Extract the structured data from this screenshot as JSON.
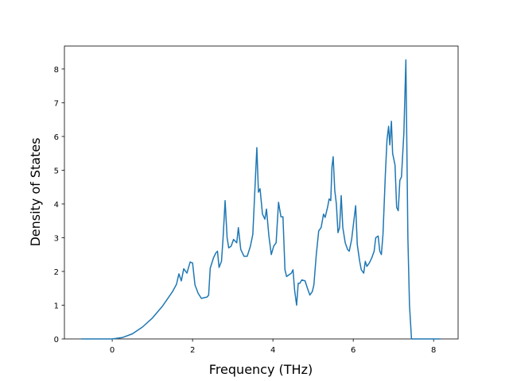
{
  "chart_data": {
    "type": "line",
    "xlabel": "Frequency (THz)",
    "ylabel": "Density of States",
    "xlim": [
      -1.19,
      8.61
    ],
    "ylim": [
      0,
      8.68
    ],
    "xticks": [
      0,
      2,
      4,
      6,
      8
    ],
    "yticks": [
      0,
      1,
      2,
      3,
      4,
      5,
      6,
      7,
      8
    ],
    "grid": false,
    "x": [
      -0.77,
      0,
      0.25,
      0.5,
      0.75,
      1.0,
      1.25,
      1.5,
      1.6,
      1.66,
      1.72,
      1.78,
      1.86,
      1.94,
      2.0,
      2.06,
      2.14,
      2.22,
      2.28,
      2.36,
      2.4,
      2.44,
      2.52,
      2.58,
      2.62,
      2.66,
      2.72,
      2.76,
      2.81,
      2.86,
      2.9,
      2.96,
      3.02,
      3.1,
      3.14,
      3.2,
      3.28,
      3.36,
      3.44,
      3.5,
      3.6,
      3.64,
      3.68,
      3.74,
      3.8,
      3.84,
      3.9,
      3.96,
      4.02,
      4.08,
      4.14,
      4.2,
      4.25,
      4.3,
      4.34,
      4.4,
      4.46,
      4.5,
      4.54,
      4.59,
      4.63,
      4.67,
      4.72,
      4.8,
      4.86,
      4.92,
      4.98,
      5.02,
      5.08,
      5.14,
      5.2,
      5.26,
      5.3,
      5.36,
      5.4,
      5.44,
      5.47,
      5.5,
      5.54,
      5.58,
      5.62,
      5.66,
      5.7,
      5.74,
      5.8,
      5.86,
      5.9,
      5.96,
      6.0,
      6.06,
      6.1,
      6.16,
      6.2,
      6.26,
      6.3,
      6.34,
      6.4,
      6.46,
      6.52,
      6.56,
      6.62,
      6.66,
      6.7,
      6.74,
      6.8,
      6.84,
      6.88,
      6.91,
      6.95,
      6.98,
      7.04,
      7.08,
      7.12,
      7.16,
      7.2,
      7.26,
      7.31,
      7.36,
      7.4,
      7.45,
      8.17
    ],
    "series": [
      {
        "name": "DOS",
        "color": "#1f77b4",
        "values": [
          0,
          0,
          0.04,
          0.15,
          0.35,
          0.62,
          0.97,
          1.4,
          1.62,
          1.93,
          1.72,
          2.08,
          1.95,
          2.28,
          2.25,
          1.6,
          1.35,
          1.2,
          1.22,
          1.24,
          1.3,
          2.1,
          2.4,
          2.55,
          2.6,
          2.12,
          2.3,
          3.0,
          4.1,
          3.0,
          2.7,
          2.75,
          2.95,
          2.85,
          3.3,
          2.65,
          2.45,
          2.45,
          2.75,
          3.1,
          5.67,
          4.35,
          4.45,
          3.7,
          3.55,
          3.85,
          3.05,
          2.5,
          2.75,
          2.85,
          4.05,
          3.62,
          3.62,
          2.05,
          1.85,
          1.9,
          1.95,
          2.05,
          1.45,
          1.0,
          1.65,
          1.65,
          1.75,
          1.72,
          1.5,
          1.3,
          1.4,
          1.6,
          2.5,
          3.2,
          3.3,
          3.7,
          3.6,
          3.9,
          4.15,
          4.1,
          5.1,
          5.4,
          4.4,
          4.0,
          3.15,
          3.3,
          4.25,
          3.3,
          2.85,
          2.65,
          2.6,
          2.95,
          3.35,
          3.95,
          2.8,
          2.3,
          2.05,
          1.95,
          2.3,
          2.15,
          2.25,
          2.4,
          2.6,
          3.0,
          3.05,
          2.6,
          2.5,
          3.1,
          4.9,
          5.9,
          6.3,
          5.75,
          6.45,
          5.5,
          5.15,
          3.9,
          3.8,
          4.7,
          4.8,
          6.1,
          8.27,
          3.0,
          1.0,
          0,
          0
        ]
      }
    ]
  }
}
